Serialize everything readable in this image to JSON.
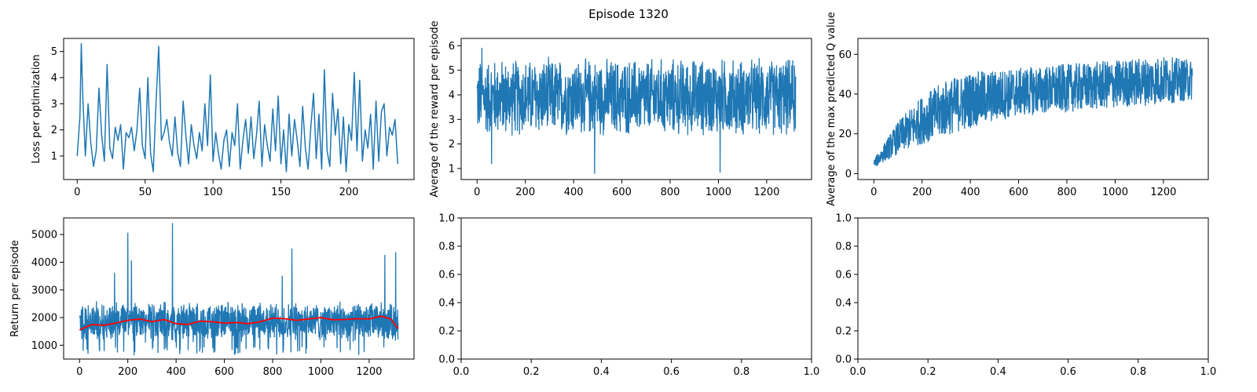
{
  "figure": {
    "title": "Episode 1320"
  },
  "colors": {
    "series": "#1f77b4",
    "moving_average": "#ff0000",
    "axes": "#000000",
    "background": "#ffffff"
  },
  "chart_data": [
    {
      "type": "line",
      "panel": "top-left",
      "ylabel": "Loss per optimization",
      "xlabel": "",
      "xlim": [
        -10,
        248
      ],
      "ylim": [
        0.1,
        5.5
      ],
      "xticks": [
        0,
        50,
        100,
        150,
        200
      ],
      "yticks": [
        1,
        2,
        3,
        4,
        5
      ],
      "grid": false,
      "series": [
        {
          "x": [
            0,
            2,
            3,
            4,
            6,
            8,
            10,
            12,
            14,
            16,
            18,
            20,
            22,
            24,
            26,
            28,
            30,
            32,
            34,
            36,
            38,
            40,
            42,
            44,
            46,
            48,
            50,
            52,
            54,
            56,
            58,
            60,
            62,
            64,
            66,
            68,
            70,
            72,
            74,
            76,
            78,
            80,
            82,
            84,
            86,
            88,
            90,
            92,
            94,
            96,
            98,
            100,
            102,
            104,
            106,
            108,
            110,
            112,
            114,
            116,
            118,
            120,
            122,
            124,
            126,
            128,
            130,
            132,
            134,
            136,
            138,
            140,
            142,
            144,
            146,
            148,
            150,
            152,
            154,
            156,
            158,
            160,
            162,
            164,
            166,
            168,
            170,
            172,
            174,
            176,
            178,
            180,
            182,
            184,
            186,
            188,
            190,
            192,
            194,
            196,
            198,
            200,
            202,
            204,
            206,
            208,
            210,
            212,
            214,
            216,
            218,
            220,
            222,
            224,
            226,
            228,
            230,
            232,
            234,
            236
          ],
          "y": [
            1.0,
            2.5,
            5.3,
            3.4,
            1.0,
            3.0,
            1.5,
            0.6,
            1.2,
            3.6,
            1.8,
            0.8,
            4.5,
            1.3,
            0.9,
            2.1,
            1.6,
            2.2,
            0.5,
            1.9,
            1.7,
            2.1,
            1.2,
            2.0,
            3.6,
            1.4,
            0.9,
            4.0,
            1.1,
            0.4,
            3.0,
            5.2,
            1.6,
            1.9,
            2.4,
            1.5,
            1.0,
            2.5,
            1.1,
            0.6,
            3.1,
            1.8,
            0.7,
            2.2,
            1.4,
            0.9,
            1.9,
            1.2,
            3.0,
            1.4,
            4.1,
            0.8,
            1.9,
            1.1,
            0.5,
            1.6,
            2.0,
            0.6,
            1.9,
            1.4,
            3.0,
            0.5,
            1.6,
            2.4,
            1.1,
            2.5,
            0.9,
            1.8,
            3.1,
            0.6,
            2.2,
            1.4,
            0.8,
            2.8,
            1.2,
            3.3,
            0.7,
            2.0,
            0.4,
            2.6,
            1.0,
            2.4,
            1.6,
            0.6,
            2.9,
            1.3,
            0.5,
            2.1,
            3.4,
            0.9,
            2.6,
            0.5,
            4.3,
            1.2,
            0.6,
            3.4,
            1.8,
            2.8,
            0.7,
            2.5,
            0.4,
            2.2,
            1.6,
            4.2,
            1.2,
            3.9,
            0.8,
            2.0,
            1.3,
            2.6,
            0.5,
            3.1,
            0.8,
            2.7,
            3.0,
            1.0,
            2.1,
            1.8,
            2.4,
            0.7
          ]
        }
      ]
    },
    {
      "type": "line",
      "panel": "top-middle",
      "ylabel": "Average of the reward per episode",
      "xlabel": "",
      "xlim": [
        -66,
        1386
      ],
      "ylim": [
        0.55,
        6.3
      ],
      "xticks": [
        0,
        200,
        400,
        600,
        800,
        1000,
        1200
      ],
      "yticks": [
        1,
        2,
        3,
        4,
        5,
        6
      ],
      "grid": false,
      "series": [
        {
          "noise_summary": "dense high-frequency signal, 1321 episodes",
          "mean": 3.9,
          "low_band": 2.3,
          "high_band": 5.6,
          "outliers": [
            [
              60,
              1.2
            ],
            [
              487,
              0.8
            ],
            [
              1007,
              0.85
            ],
            [
              20,
              5.9
            ]
          ]
        }
      ]
    },
    {
      "type": "line",
      "panel": "top-right",
      "ylabel": "Average of the max predicted Q value",
      "xlabel": "",
      "xlim": [
        -66,
        1386
      ],
      "ylim": [
        -3,
        68
      ],
      "xticks": [
        0,
        200,
        400,
        600,
        800,
        1000,
        1200
      ],
      "yticks": [
        0,
        20,
        40,
        60
      ],
      "grid": false,
      "trend": {
        "x": [
          0,
          100,
          200,
          300,
          400,
          500,
          600,
          700,
          800,
          900,
          1000,
          1100,
          1200,
          1320
        ],
        "y_center": [
          5,
          18,
          27,
          33,
          37,
          39,
          41,
          42,
          43,
          44,
          45,
          46,
          47,
          47
        ],
        "y_spread": [
          2,
          8,
          12,
          14,
          14,
          13,
          12,
          12,
          12,
          12,
          12,
          12,
          12,
          10
        ]
      }
    },
    {
      "type": "line",
      "panel": "bottom-left",
      "ylabel": "Return per episode",
      "xlabel": "",
      "xlim": [
        -66,
        1386
      ],
      "ylim": [
        500,
        5600
      ],
      "xticks": [
        0,
        200,
        400,
        600,
        800,
        1000,
        1200
      ],
      "yticks": [
        1000,
        2000,
        3000,
        4000,
        5000
      ],
      "grid": false,
      "series": [
        {
          "role": "raw",
          "mean": 1850,
          "low_band": 1000,
          "high_band": 2600,
          "spikes": [
            [
              200,
              5050
            ],
            [
              385,
              5400
            ],
            [
              880,
              4480
            ],
            [
              1265,
              4250
            ],
            [
              1310,
              4350
            ],
            [
              215,
              4050
            ],
            [
              840,
              3500
            ],
            [
              145,
              3600
            ]
          ]
        },
        {
          "role": "moving_average",
          "x": [
            0,
            50,
            100,
            150,
            200,
            250,
            300,
            350,
            400,
            450,
            500,
            550,
            600,
            650,
            700,
            750,
            800,
            850,
            900,
            950,
            1000,
            1050,
            1100,
            1150,
            1200,
            1250,
            1290,
            1320
          ],
          "y": [
            1550,
            1750,
            1720,
            1800,
            1900,
            1950,
            1850,
            1930,
            1780,
            1750,
            1870,
            1850,
            1800,
            1820,
            1780,
            1850,
            1980,
            1960,
            1900,
            1950,
            2000,
            1920,
            1930,
            1960,
            1950,
            2050,
            1950,
            1600
          ]
        }
      ]
    },
    {
      "type": "line",
      "panel": "bottom-middle",
      "ylabel": "",
      "xlabel": "",
      "xlim": [
        0,
        1
      ],
      "ylim": [
        0,
        1
      ],
      "xticks": [
        0.0,
        0.2,
        0.4,
        0.6,
        0.8,
        1.0
      ],
      "yticks": [
        0.0,
        0.2,
        0.4,
        0.6,
        0.8,
        1.0
      ],
      "tick_format": "one_decimal",
      "grid": false,
      "series": []
    },
    {
      "type": "line",
      "panel": "bottom-right",
      "ylabel": "",
      "xlabel": "",
      "xlim": [
        0,
        1
      ],
      "ylim": [
        0,
        1
      ],
      "xticks": [
        0.0,
        0.2,
        0.4,
        0.6,
        0.8,
        1.0
      ],
      "yticks": [
        0.0,
        0.2,
        0.4,
        0.6,
        0.8,
        1.0
      ],
      "tick_format": "one_decimal",
      "grid": false,
      "series": []
    }
  ]
}
